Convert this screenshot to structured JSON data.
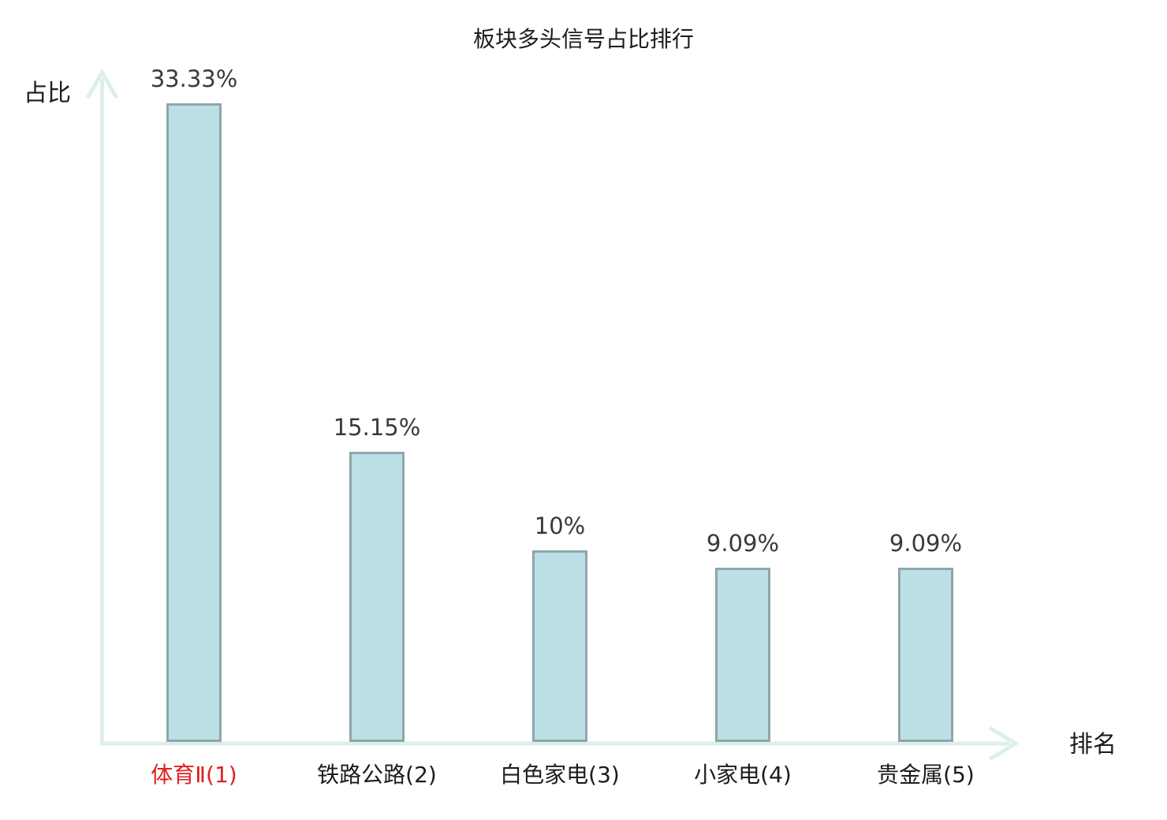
{
  "chart_data": {
    "type": "bar",
    "title": "板块多头信号占比排行",
    "ylabel": "占比",
    "xlabel": "排名",
    "categories": [
      "体育Ⅱ(1)",
      "铁路公路(2)",
      "白色家电(3)",
      "小家电(4)",
      "贵金属(5)"
    ],
    "values": [
      33.33,
      15.15,
      10,
      9.09,
      9.09
    ],
    "value_labels": [
      "33.33%",
      "15.15%",
      "10%",
      "9.09%",
      "9.09%"
    ],
    "highlighted_category_index": 0,
    "ylim": [
      0,
      35
    ],
    "grid": false,
    "legend": "none",
    "colors": {
      "bar_fill": "#bce0e5",
      "bar_border": "#8da7ab",
      "axis": "#ddefeb",
      "text": "#1c1c1c",
      "value_text": "#3a3a3a",
      "highlight_text": "#e02020",
      "background": "#ffffff"
    }
  }
}
